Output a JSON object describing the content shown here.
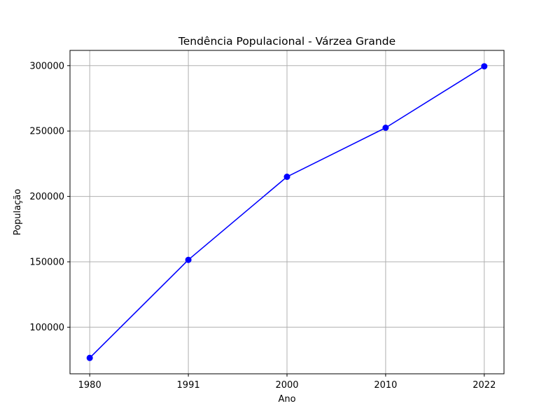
{
  "chart_data": {
    "type": "line",
    "title": "Tendência Populacional - Várzea Grande",
    "xlabel": "Ano",
    "ylabel": "População",
    "categories": [
      "1980",
      "1991",
      "2000",
      "2010",
      "2022"
    ],
    "series": [
      {
        "values": [
          76500,
          151500,
          215000,
          252500,
          299500
        ],
        "color": "#0000ff",
        "marker": "circle"
      }
    ],
    "yticks": [
      100000,
      150000,
      200000,
      250000,
      300000
    ],
    "ylim": [
      64350,
      311650
    ],
    "grid": true,
    "legend": "none"
  }
}
